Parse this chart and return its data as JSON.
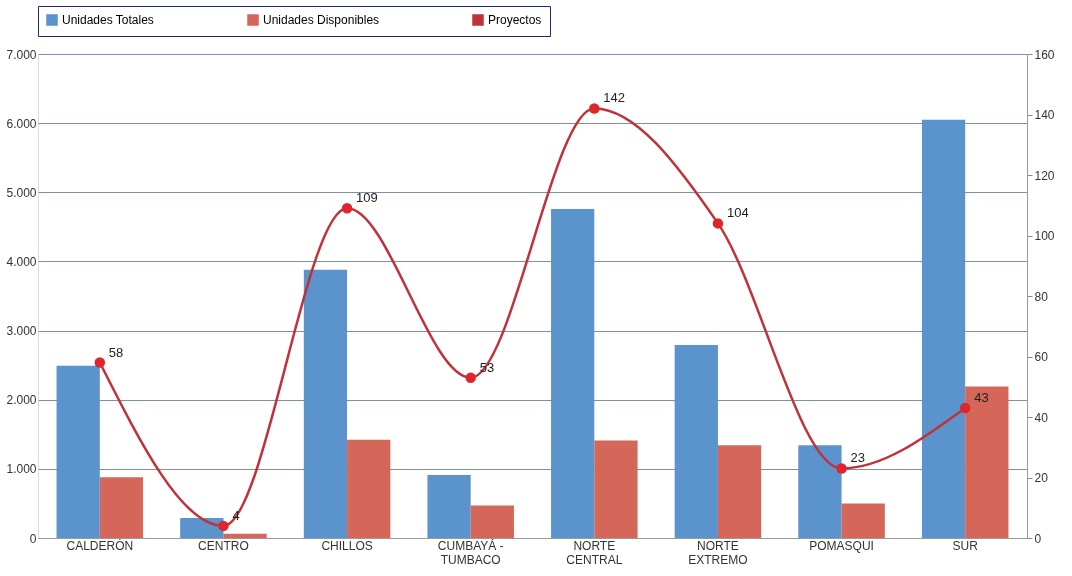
{
  "chart_data": {
    "type": "bar",
    "categories": [
      "CALDERÓN",
      "CENTRO",
      "CHILLOS",
      "CUMBAYÁ - TUMBACO",
      "NORTE CENTRAL",
      "NORTE EXTREMO",
      "POMASQUI",
      "SUR"
    ],
    "series": [
      {
        "name": "Unidades Totales",
        "color": "#5b93cc",
        "values": [
          2490,
          290,
          3880,
          910,
          4760,
          2790,
          1340,
          6050
        ]
      },
      {
        "name": "Unidades Disponibles",
        "color": "#d4665a",
        "values": [
          880,
          60,
          1420,
          470,
          1410,
          1340,
          500,
          2190
        ]
      },
      {
        "name": "Proyectos",
        "type": "line",
        "axis": "y2",
        "color": "#c0323a",
        "marker": "circle",
        "values": [
          58,
          4,
          109,
          53,
          142,
          104,
          23,
          43
        ],
        "value_labels": [
          "58",
          "4",
          "109",
          "53",
          "142",
          "104",
          "23",
          "43"
        ]
      }
    ],
    "ylim": [
      0,
      7000
    ],
    "yticks": [
      {
        "value": 0,
        "label": "0"
      },
      {
        "value": 1000,
        "label": "1.000"
      },
      {
        "value": 2000,
        "label": "2.000"
      },
      {
        "value": 3000,
        "label": "3.000"
      },
      {
        "value": 4000,
        "label": "4.000"
      },
      {
        "value": 5000,
        "label": "5.000"
      },
      {
        "value": 6000,
        "label": "6.000"
      },
      {
        "value": 7000,
        "label": "7.000"
      }
    ],
    "y2lim": [
      0,
      160
    ],
    "y2ticks": [
      0,
      20,
      40,
      60,
      80,
      100,
      120,
      140,
      160
    ],
    "grid": "y",
    "legend": "top"
  }
}
